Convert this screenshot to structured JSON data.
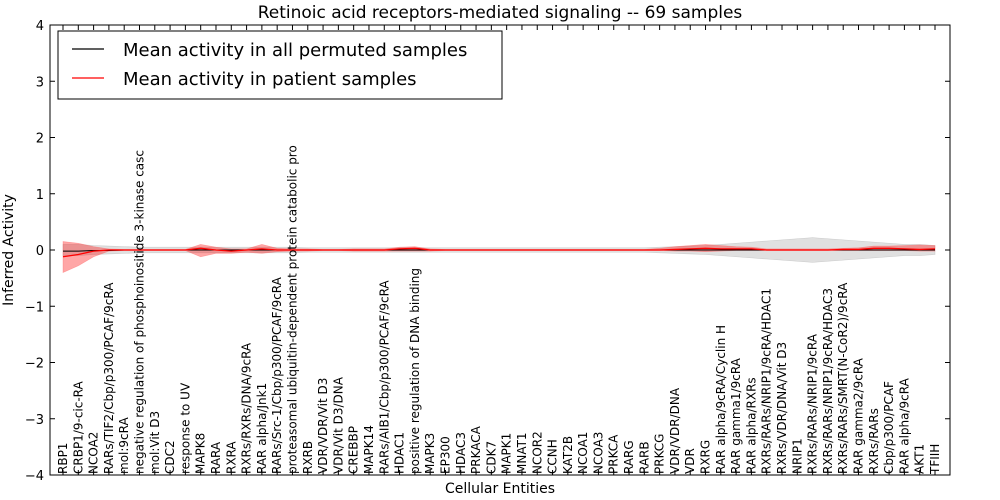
{
  "chart_data": {
    "type": "line",
    "title": "Retinoic acid receptors-mediated signaling -- 69 samples",
    "xlabel": "Cellular Entities",
    "ylabel": "Inferred Activity",
    "ylim": [
      -4,
      4
    ],
    "yticks": [
      -4,
      -3,
      -2,
      -1,
      0,
      1,
      2,
      3,
      4
    ],
    "ytick_labels": [
      "−4",
      "−3",
      "−2",
      "−1",
      "0",
      "1",
      "2",
      "3",
      "4"
    ],
    "legend": {
      "placement": "top-left",
      "entries": [
        {
          "label": "Mean activity in all permuted samples",
          "color": "#000000"
        },
        {
          "label": "Mean activity in patient samples",
          "color": "#ff0000"
        }
      ]
    },
    "categories": [
      "RBP1",
      "CRBP1/9-cic-RA",
      "NCOA2",
      "RARs/TIF2/Cbp/p300/PCAF/9cRA",
      "mol:9cRA",
      "negative regulation of phosphoinositide 3-kinase casc",
      "mol:Vit D3",
      "CDC2",
      "response to UV",
      "MAPK8",
      "RARA",
      "RXRA",
      "RXRs/RXRs/DNA/9cRA",
      "RAR alpha/Jnk1",
      "RARs/Src-1/Cbp/p300/PCAF/9cRA",
      "proteasomal ubiquitin-dependent protein catabolic pro",
      "RXRB",
      "VDR/VDR/Vit D3",
      "VDR/Vit D3/DNA",
      "CREBBP",
      "MAPK14",
      "RARs/AIB1/Cbp/p300/PCAF/9cRA",
      "HDAC1",
      "positive regulation of DNA binding",
      "MAPK3",
      "EP300",
      "HDAC3",
      "PRKACA",
      "CDK7",
      "MAPK1",
      "MNAT1",
      "NCOR2",
      "CCNH",
      "KAT2B",
      "NCOA1",
      "NCOA3",
      "PRKCA",
      "RARG",
      "RARB",
      "PRKCG",
      "VDR/VDR/DNA",
      "VDR",
      "RXRG",
      "RAR alpha/9cRA/Cyclin H",
      "RAR gamma1/9cRA",
      "RAR alpha/RXRs",
      "RXRs/RARs/NRIP1/9cRA/HDAC1",
      "RXRs/VDR/DNA/Vit D3",
      "NRIP1",
      "RXRs/RARs/NRIP1/9cRA",
      "RXRs/RARs/NRIP1/9cRA/HDAC3",
      "RXRs/RARs/SMRT(N-CoR2)/9cRA",
      "RAR gamma2/9cRA",
      "RXRs/RARs",
      "Cbp/p300/PCAF",
      "RAR alpha/9cRA",
      "AKT1",
      "TFIIH"
    ],
    "series": [
      {
        "name": "Mean activity in all permuted samples",
        "color": "#000000",
        "values": [
          -0.02,
          -0.02,
          -0.01,
          -0.01,
          0,
          0,
          0,
          0,
          0,
          0,
          0,
          0,
          0,
          0,
          0,
          0,
          0,
          0,
          0,
          0,
          0,
          0,
          0,
          0,
          0,
          0,
          0,
          0,
          0,
          0,
          0,
          0,
          0,
          0,
          0,
          0,
          0,
          0,
          0,
          0,
          0,
          0,
          0,
          0,
          0,
          0,
          0,
          0,
          0,
          0,
          0,
          0,
          0,
          0,
          0,
          0,
          0,
          0
        ],
        "band_upper": [
          0.1,
          0.1,
          0.08,
          0.07,
          0.06,
          0.05,
          0.05,
          0.05,
          0.05,
          0.05,
          0.05,
          0.05,
          0.05,
          0.05,
          0.05,
          0.05,
          0.04,
          0.04,
          0.04,
          0.04,
          0.04,
          0.04,
          0.04,
          0.04,
          0.04,
          0.04,
          0.04,
          0.04,
          0.04,
          0.04,
          0.04,
          0.04,
          0.04,
          0.04,
          0.04,
          0.04,
          0.04,
          0.04,
          0.04,
          0.05,
          0.06,
          0.07,
          0.08,
          0.1,
          0.12,
          0.14,
          0.16,
          0.18,
          0.2,
          0.22,
          0.2,
          0.18,
          0.16,
          0.14,
          0.12,
          0.1,
          0.1,
          0.08
        ],
        "band_lower": [
          -0.1,
          -0.1,
          -0.08,
          -0.07,
          -0.06,
          -0.05,
          -0.05,
          -0.05,
          -0.05,
          -0.05,
          -0.05,
          -0.05,
          -0.05,
          -0.05,
          -0.05,
          -0.05,
          -0.04,
          -0.04,
          -0.04,
          -0.04,
          -0.04,
          -0.04,
          -0.04,
          -0.04,
          -0.04,
          -0.04,
          -0.04,
          -0.04,
          -0.04,
          -0.04,
          -0.04,
          -0.04,
          -0.04,
          -0.04,
          -0.04,
          -0.04,
          -0.04,
          -0.04,
          -0.04,
          -0.05,
          -0.06,
          -0.07,
          -0.08,
          -0.1,
          -0.12,
          -0.14,
          -0.16,
          -0.18,
          -0.2,
          -0.22,
          -0.2,
          -0.18,
          -0.16,
          -0.14,
          -0.12,
          -0.1,
          -0.1,
          -0.08
        ]
      },
      {
        "name": "Mean activity in patient samples",
        "color": "#ff0000",
        "values": [
          -0.12,
          -0.08,
          -0.02,
          0,
          0,
          0,
          0,
          0,
          0,
          0.03,
          0,
          -0.02,
          0,
          0.02,
          0,
          0,
          0,
          0,
          0,
          0,
          0,
          0,
          0.02,
          0.03,
          0,
          0,
          0,
          0,
          0,
          0,
          0,
          0,
          0,
          0,
          0,
          0,
          0,
          0,
          0,
          0,
          0.01,
          0.02,
          0.03,
          0.02,
          0.02,
          0.02,
          0,
          0,
          0,
          0,
          0,
          0.01,
          0.01,
          0.03,
          0.03,
          0.02,
          0.01,
          0.02
        ],
        "band_upper": [
          0.15,
          0.12,
          0.06,
          0.02,
          0.01,
          0.01,
          0.01,
          0.01,
          0.01,
          0.1,
          0.05,
          0.02,
          0.02,
          0.1,
          0.03,
          0.02,
          0.02,
          0.01,
          0.01,
          0.02,
          0.02,
          0.02,
          0.05,
          0.06,
          0.02,
          0.01,
          0.01,
          0.01,
          0.01,
          0.01,
          0.01,
          0.01,
          0.01,
          0.01,
          0.01,
          0.01,
          0.01,
          0.01,
          0.01,
          0.03,
          0.06,
          0.08,
          0.1,
          0.08,
          0.06,
          0.05,
          0.02,
          0.02,
          0.02,
          0.02,
          0.02,
          0.03,
          0.04,
          0.07,
          0.07,
          0.08,
          0.09,
          0.08
        ],
        "band_lower": [
          -0.4,
          -0.28,
          -0.12,
          -0.02,
          -0.01,
          -0.01,
          -0.01,
          -0.01,
          -0.01,
          -0.12,
          -0.06,
          -0.06,
          -0.04,
          -0.06,
          -0.03,
          -0.02,
          -0.02,
          -0.01,
          -0.01,
          -0.02,
          -0.02,
          -0.02,
          -0.02,
          -0.02,
          -0.02,
          -0.01,
          -0.01,
          -0.01,
          -0.01,
          -0.01,
          -0.01,
          -0.01,
          -0.01,
          -0.01,
          -0.01,
          -0.01,
          -0.01,
          -0.01,
          -0.01,
          -0.01,
          -0.02,
          -0.02,
          -0.03,
          -0.02,
          -0.01,
          -0.01,
          -0.01,
          -0.01,
          -0.01,
          -0.01,
          -0.01,
          -0.01,
          -0.01,
          -0.01,
          -0.01,
          -0.01,
          -0.02,
          -0.02
        ]
      }
    ]
  }
}
